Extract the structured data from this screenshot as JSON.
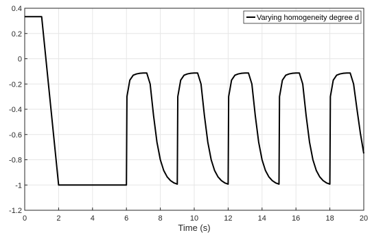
{
  "chart_data": {
    "type": "line",
    "title": "",
    "xlabel": "Time (s)",
    "ylabel": "",
    "xlim": [
      0,
      20
    ],
    "ylim": [
      -1.2,
      0.4
    ],
    "xticks": [
      0,
      2,
      4,
      6,
      8,
      10,
      12,
      14,
      16,
      18,
      20
    ],
    "yticks": [
      -1.2,
      -1,
      -0.8,
      -0.6,
      -0.4,
      -0.2,
      0,
      0.2,
      0.4
    ],
    "xtick_labels": [
      "0",
      "2",
      "4",
      "6",
      "8",
      "10",
      "12",
      "14",
      "16",
      "18",
      "20"
    ],
    "ytick_labels": [
      "-1.2",
      "-1",
      "-0.8",
      "-0.6",
      "-0.4",
      "-0.2",
      "0",
      "0.2",
      "0.4"
    ],
    "grid": true,
    "legend_position": "top-right",
    "colors": {
      "line": "#000000",
      "grid": "#e6e6e6",
      "axis": "#262626"
    },
    "series": [
      {
        "name": "Varying homogeneity degree d",
        "x": [
          0,
          1,
          2,
          6,
          6.03,
          6.2,
          6.4,
          6.6,
          6.8,
          7.0,
          7.2,
          7.4,
          7.6,
          7.8,
          8.0,
          8.2,
          8.4,
          8.6,
          8.8,
          9.0,
          9.03,
          9.2,
          9.4,
          9.6,
          9.8,
          10.0,
          10.2,
          10.4,
          10.6,
          10.8,
          11.0,
          11.2,
          11.4,
          11.6,
          11.8,
          12.0,
          12.03,
          12.2,
          12.4,
          12.6,
          12.8,
          13.0,
          13.2,
          13.4,
          13.6,
          13.8,
          14.0,
          14.2,
          14.4,
          14.6,
          14.8,
          15.0,
          15.03,
          15.2,
          15.4,
          15.6,
          15.8,
          16.0,
          16.2,
          16.4,
          16.6,
          16.8,
          17.0,
          17.2,
          17.4,
          17.6,
          17.8,
          18.0,
          18.03,
          18.2,
          18.4,
          18.6,
          18.8,
          19.0,
          19.2,
          19.4,
          19.6,
          19.8,
          20.0
        ],
        "y": [
          0.333,
          0.333,
          -1,
          -1,
          -0.3,
          -0.17,
          -0.13,
          -0.12,
          -0.115,
          -0.113,
          -0.113,
          -0.2,
          -0.45,
          -0.66,
          -0.8,
          -0.885,
          -0.935,
          -0.965,
          -0.983,
          -0.993,
          -0.3,
          -0.17,
          -0.13,
          -0.12,
          -0.115,
          -0.113,
          -0.113,
          -0.2,
          -0.45,
          -0.66,
          -0.8,
          -0.885,
          -0.935,
          -0.965,
          -0.983,
          -0.993,
          -0.3,
          -0.17,
          -0.13,
          -0.12,
          -0.115,
          -0.113,
          -0.113,
          -0.2,
          -0.45,
          -0.66,
          -0.8,
          -0.885,
          -0.935,
          -0.965,
          -0.983,
          -0.993,
          -0.3,
          -0.17,
          -0.13,
          -0.12,
          -0.115,
          -0.113,
          -0.113,
          -0.2,
          -0.45,
          -0.66,
          -0.8,
          -0.885,
          -0.935,
          -0.965,
          -0.983,
          -0.993,
          -0.3,
          -0.17,
          -0.13,
          -0.12,
          -0.115,
          -0.113,
          -0.113,
          -0.2,
          -0.4,
          -0.59,
          -0.75
        ]
      }
    ]
  }
}
